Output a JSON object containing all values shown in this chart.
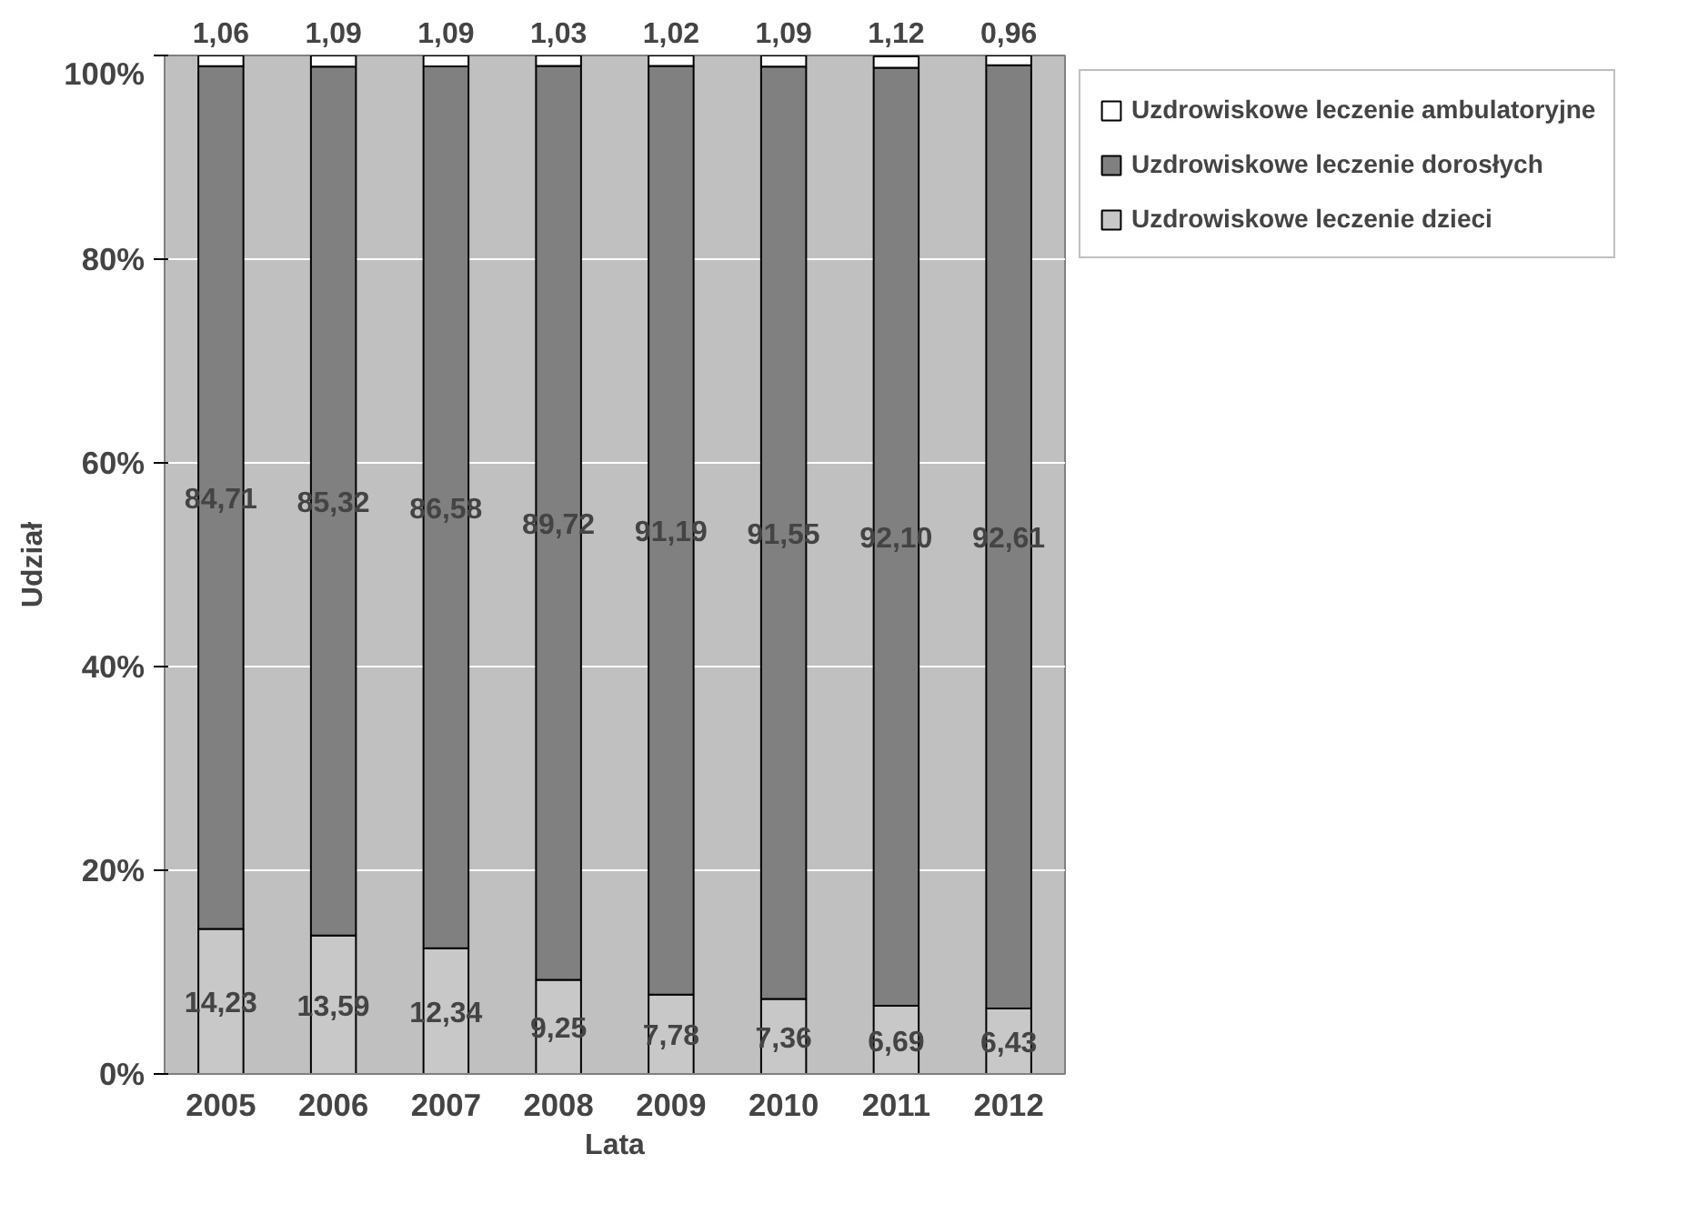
{
  "chart_data": {
    "type": "bar",
    "stacked": true,
    "xlabel": "Lata",
    "ylabel": "Udział",
    "categories": [
      "2005",
      "2006",
      "2007",
      "2008",
      "2009",
      "2010",
      "2011",
      "2012"
    ],
    "series": [
      {
        "name": "Uzdrowiskowe leczenie dzieci",
        "color": "#c8c8c8",
        "values": [
          14.23,
          13.59,
          12.34,
          9.25,
          7.78,
          7.36,
          6.69,
          6.43
        ],
        "value_labels": [
          "14,23",
          "13,59",
          "12,34",
          "9,25",
          "7,78",
          "7,36",
          "6,69",
          "6,43"
        ]
      },
      {
        "name": "Uzdrowiskowe leczenie dorosłych",
        "color": "#808080",
        "values": [
          84.71,
          85.32,
          86.58,
          89.72,
          91.19,
          91.55,
          92.1,
          92.61
        ],
        "value_labels": [
          "84,71",
          "85,32",
          "86,58",
          "89,72",
          "91,19",
          "91,55",
          "92,10",
          "92,61"
        ]
      },
      {
        "name": "Uzdrowiskowe leczenie ambulatoryjne",
        "color": "#ffffff",
        "values": [
          1.06,
          1.09,
          1.09,
          1.03,
          1.02,
          1.09,
          1.12,
          0.96
        ],
        "value_labels": [
          "1,06",
          "1,09",
          "1,09",
          "1,03",
          "1,02",
          "1,09",
          "1,12",
          "0,96"
        ]
      }
    ],
    "ylim": [
      0,
      100
    ],
    "yticks": [
      {
        "value": 0,
        "label": "0%"
      },
      {
        "value": 20,
        "label": "20%"
      },
      {
        "value": 40,
        "label": "40%"
      },
      {
        "value": 60,
        "label": "60%"
      },
      {
        "value": 80,
        "label": "80%"
      },
      {
        "value": 100,
        "label": "100%"
      }
    ],
    "grid": "y",
    "legend": "right"
  }
}
